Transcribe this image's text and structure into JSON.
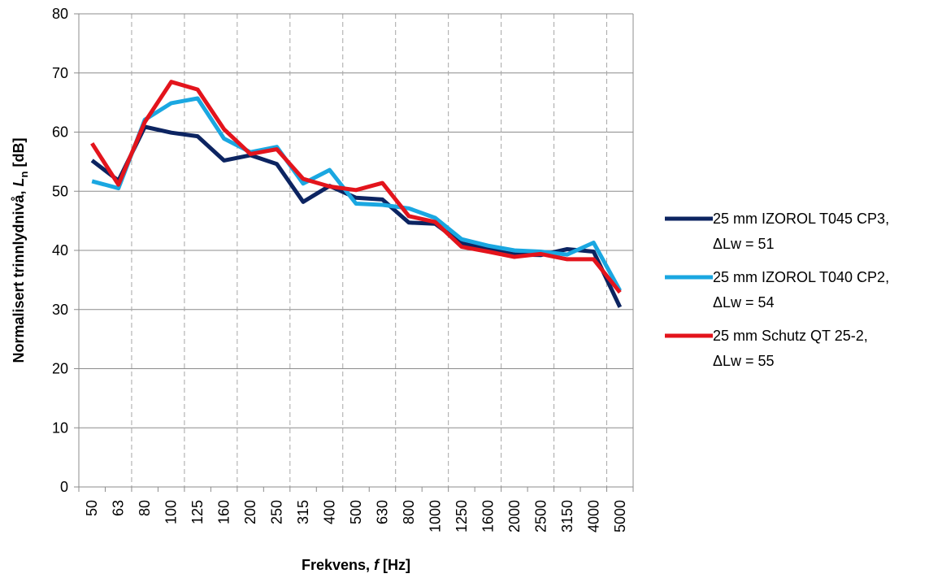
{
  "chart_data": {
    "type": "line",
    "title": "",
    "xlabel": {
      "pre": "Frekvens, ",
      "var": "f",
      "post": " [Hz]"
    },
    "ylabel": {
      "pre": "Normalisert trinnlydnivå, ",
      "var": "L",
      "sub": "n",
      "post": " [dB]"
    },
    "ylim": [
      0,
      80
    ],
    "yticks": [
      0,
      10,
      20,
      30,
      40,
      50,
      60,
      70,
      80
    ],
    "categories": [
      "50",
      "63",
      "80",
      "100",
      "125",
      "160",
      "200",
      "250",
      "315",
      "400",
      "500",
      "630",
      "800",
      "1000",
      "1250",
      "1600",
      "2000",
      "2500",
      "3150",
      "4000",
      "5000"
    ],
    "grid": {
      "horizontal": "solid",
      "vertical": "dashed"
    },
    "legend_position": "right",
    "series": [
      {
        "name": "25 mm IZOROL T045 CP3,",
        "name_line2": "ΔLw = 51",
        "color": "#0c2461",
        "values": [
          55.2,
          51.8,
          60.9,
          59.9,
          59.3,
          55.2,
          56.1,
          54.6,
          48.2,
          50.9,
          48.9,
          48.6,
          44.7,
          44.5,
          41.2,
          40.2,
          39.3,
          39.2,
          40.2,
          39.8,
          30.4
        ]
      },
      {
        "name": "25 mm IZOROL T040 CP2,",
        "name_line2": "ΔLw = 54",
        "color": "#1aa7e1",
        "values": [
          51.7,
          50.5,
          62.1,
          64.9,
          65.7,
          58.9,
          56.6,
          57.5,
          51.3,
          53.6,
          47.9,
          47.7,
          47.1,
          45.5,
          41.9,
          40.8,
          40.0,
          39.8,
          39.3,
          41.3,
          33.2
        ]
      },
      {
        "name": "25 mm Schutz QT 25-2,",
        "name_line2": "ΔLw = 55",
        "color": "#e3141c",
        "values": [
          58.1,
          51.1,
          61.7,
          68.5,
          67.2,
          60.5,
          56.3,
          57.1,
          52.1,
          50.8,
          50.2,
          51.4,
          45.8,
          44.8,
          40.6,
          39.8,
          38.9,
          39.4,
          38.5,
          38.5,
          32.9
        ]
      }
    ]
  }
}
